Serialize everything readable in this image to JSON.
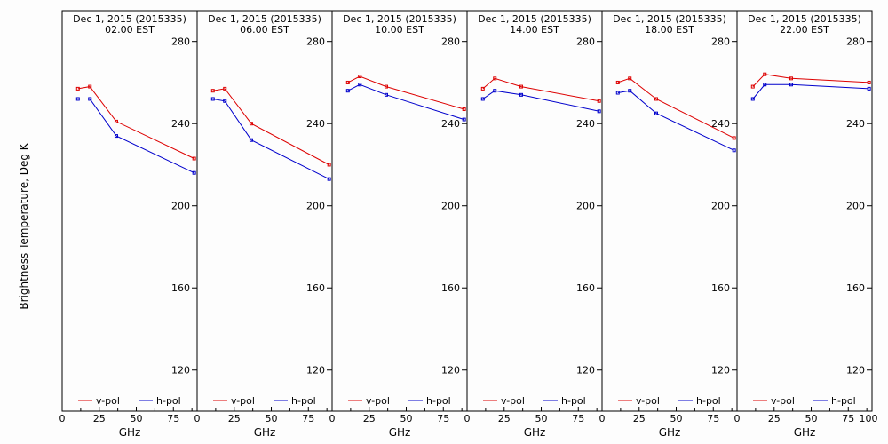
{
  "chart_data": {
    "type": "line",
    "ylabel": "Brightness Temperature, Deg K",
    "xlabel": "GHz",
    "xlim": [
      0,
      91
    ],
    "ylim": [
      100,
      295
    ],
    "yticks": [
      120,
      160,
      200,
      240,
      280
    ],
    "xticks": [
      0,
      25,
      50,
      75,
      100
    ],
    "xtick_labels": [
      "0",
      "25",
      "50",
      "75",
      "100"
    ],
    "xticks_panels": [
      0,
      25,
      50,
      75
    ],
    "xtick_labels_panels": [
      "0",
      "25",
      "50",
      "75"
    ],
    "x_end_label": "0",
    "legend": {
      "v": "v-pol",
      "h": "h-pol"
    },
    "colors": {
      "v": "#dd0000",
      "h": "#0000cc"
    },
    "x": [
      10.65,
      18.7,
      36.5,
      89.0
    ],
    "panels": [
      {
        "date": "Dec  1, 2015 (2015335)",
        "time": "02.00 EST",
        "series": [
          {
            "name": "v-pol",
            "x": [
              10.65,
              18.7,
              36.5,
              89.0
            ],
            "values": [
              257,
              258,
              241,
              223
            ]
          },
          {
            "name": "h-pol",
            "x": [
              10.65,
              18.7,
              36.5,
              89.0
            ],
            "values": [
              252,
              252,
              234,
              216
            ]
          }
        ]
      },
      {
        "date": "Dec  1, 2015 (2015335)",
        "time": "06.00 EST",
        "series": [
          {
            "name": "v-pol",
            "x": [
              10.65,
              18.7,
              36.5,
              89.0
            ],
            "values": [
              256,
              257,
              240,
              220
            ]
          },
          {
            "name": "h-pol",
            "x": [
              10.65,
              18.7,
              36.5,
              89.0
            ],
            "values": [
              252,
              251,
              232,
              213
            ]
          }
        ]
      },
      {
        "date": "Dec  1, 2015 (2015335)",
        "time": "10.00 EST",
        "series": [
          {
            "name": "v-pol",
            "x": [
              10.65,
              18.7,
              36.5,
              89.0
            ],
            "values": [
              260,
              263,
              258,
              247
            ]
          },
          {
            "name": "h-pol",
            "x": [
              10.65,
              18.7,
              36.5,
              89.0
            ],
            "values": [
              256,
              259,
              254,
              242
            ]
          }
        ]
      },
      {
        "date": "Dec  1, 2015 (2015335)",
        "time": "14.00 EST",
        "series": [
          {
            "name": "v-pol",
            "x": [
              10.65,
              18.7,
              36.5,
              89.0
            ],
            "values": [
              257,
              262,
              258,
              251
            ]
          },
          {
            "name": "h-pol",
            "x": [
              10.65,
              18.7,
              36.5,
              89.0
            ],
            "values": [
              252,
              256,
              254,
              246
            ]
          }
        ]
      },
      {
        "date": "Dec  1, 2015 (2015335)",
        "time": "18.00 EST",
        "series": [
          {
            "name": "v-pol",
            "x": [
              10.65,
              18.7,
              36.5,
              89.0
            ],
            "values": [
              260,
              262,
              252,
              233
            ]
          },
          {
            "name": "h-pol",
            "x": [
              10.65,
              18.7,
              36.5,
              89.0
            ],
            "values": [
              255,
              256,
              245,
              227
            ]
          }
        ]
      },
      {
        "date": "Dec  1, 2015 (2015335)",
        "time": "22.00 EST",
        "series": [
          {
            "name": "v-pol",
            "x": [
              10.65,
              18.7,
              36.5,
              89.0
            ],
            "values": [
              258,
              264,
              262,
              260
            ]
          },
          {
            "name": "h-pol",
            "x": [
              10.65,
              18.7,
              36.5,
              89.0
            ],
            "values": [
              252,
              259,
              259,
              257
            ]
          }
        ]
      }
    ]
  }
}
